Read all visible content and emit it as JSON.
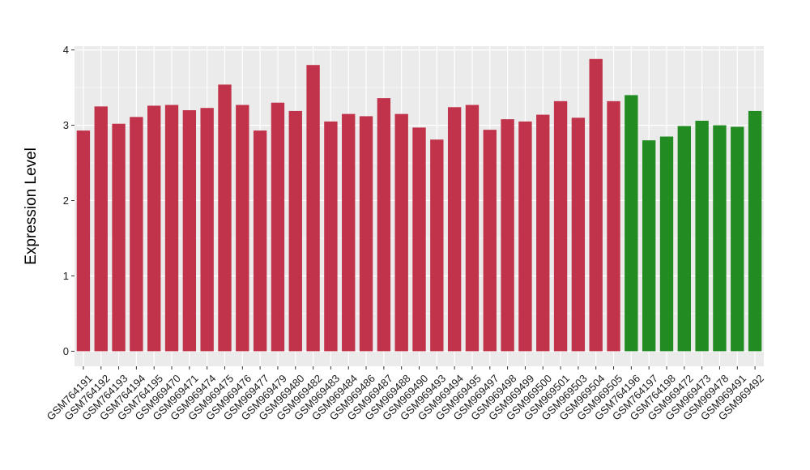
{
  "chart_data": {
    "type": "bar",
    "title": "",
    "xlabel": "",
    "ylabel": "Expression Level",
    "ylim": [
      0,
      4.05
    ],
    "yticks": [
      0,
      1,
      2,
      3,
      4
    ],
    "grid": true,
    "legend": "none",
    "categories": [
      "GSM764191",
      "GSM764192",
      "GSM764193",
      "GSM764194",
      "GSM764195",
      "GSM969470",
      "GSM969471",
      "GSM969474",
      "GSM969475",
      "GSM969476",
      "GSM969477",
      "GSM969479",
      "GSM969480",
      "GSM969482",
      "GSM969483",
      "GSM969484",
      "GSM969486",
      "GSM969487",
      "GSM969488",
      "GSM969490",
      "GSM969493",
      "GSM969494",
      "GSM969495",
      "GSM969497",
      "GSM969498",
      "GSM969499",
      "GSM969500",
      "GSM969501",
      "GSM969503",
      "GSM969504",
      "GSM969505",
      "GSM764196",
      "GSM764197",
      "GSM764198",
      "GSM969472",
      "GSM969473",
      "GSM969478",
      "GSM969491",
      "GSM969492"
    ],
    "values": [
      2.93,
      3.25,
      3.02,
      3.11,
      3.26,
      3.27,
      3.2,
      3.23,
      3.54,
      3.27,
      2.93,
      3.3,
      3.19,
      3.8,
      3.05,
      3.15,
      3.12,
      3.36,
      3.15,
      2.97,
      2.81,
      3.24,
      3.27,
      2.94,
      3.08,
      3.05,
      3.14,
      3.32,
      3.1,
      3.88,
      3.32,
      3.4,
      2.8,
      2.85,
      2.99,
      3.06,
      3.0,
      2.98,
      3.19
    ],
    "groups": [
      0,
      0,
      0,
      0,
      0,
      0,
      0,
      0,
      0,
      0,
      0,
      0,
      0,
      0,
      0,
      0,
      0,
      0,
      0,
      0,
      0,
      0,
      0,
      0,
      0,
      0,
      0,
      0,
      0,
      0,
      0,
      1,
      1,
      1,
      1,
      1,
      1,
      1,
      1
    ],
    "colors": [
      "#c0334a",
      "#228b22"
    ],
    "panel_color": "#ebebeb",
    "grid_color": "#ffffff"
  }
}
